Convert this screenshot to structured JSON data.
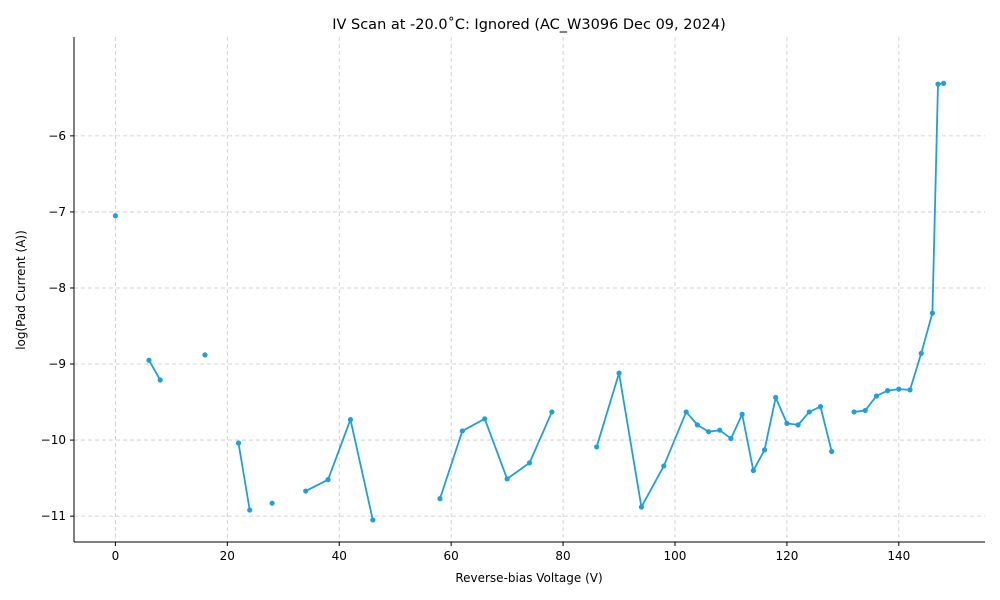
{
  "chart_data": {
    "type": "line",
    "title": "IV Scan at -20.0˚C: Ignored (AC_W3096 Dec 09, 2024)",
    "xlabel": "Reverse-bias Voltage (V)",
    "ylabel": "log(Pad Current (A))",
    "xlim": [
      -7.4,
      155.4
    ],
    "ylim": [
      -11.34,
      -4.7
    ],
    "grid": true,
    "color": "#1f9fe0",
    "x_ticks": [
      0,
      20,
      40,
      60,
      80,
      100,
      120,
      140
    ],
    "x_tick_labels": [
      "0",
      "20",
      "40",
      "60",
      "80",
      "100",
      "120",
      "140"
    ],
    "y_ticks": [
      -11,
      -10,
      -9,
      -8,
      -7,
      -6
    ],
    "y_tick_labels": [
      "−11",
      "−10",
      "−9",
      "−8",
      "−7",
      "−6"
    ],
    "series": [
      {
        "segments": [
          [
            [
              0,
              -7.05
            ]
          ],
          [
            [
              6,
              -8.95
            ],
            [
              8,
              -9.21
            ]
          ],
          [
            [
              16,
              -8.88
            ]
          ],
          [
            [
              22,
              -10.04
            ],
            [
              24,
              -10.92
            ]
          ],
          [
            [
              28,
              -10.83
            ]
          ],
          [
            [
              34,
              -10.67
            ],
            [
              38,
              -10.52
            ],
            [
              42,
              -9.73
            ],
            [
              46,
              -11.05
            ]
          ],
          [
            [
              58,
              -10.77
            ],
            [
              62,
              -9.88
            ],
            [
              66,
              -9.72
            ],
            [
              70,
              -10.51
            ],
            [
              74,
              -10.3
            ],
            [
              78,
              -9.63
            ]
          ],
          [
            [
              86,
              -10.09
            ],
            [
              90,
              -9.12
            ],
            [
              94,
              -10.88
            ],
            [
              98,
              -10.34
            ],
            [
              102,
              -9.63
            ],
            [
              104,
              -9.8
            ],
            [
              106,
              -9.89
            ],
            [
              108,
              -9.87
            ],
            [
              110,
              -9.98
            ],
            [
              112,
              -9.66
            ],
            [
              114,
              -10.4
            ],
            [
              116,
              -10.13
            ],
            [
              118,
              -9.44
            ],
            [
              120,
              -9.78
            ],
            [
              122,
              -9.8
            ],
            [
              124,
              -9.63
            ],
            [
              126,
              -9.56
            ],
            [
              128,
              -10.15
            ]
          ],
          [
            [
              132,
              -9.63
            ],
            [
              134,
              -9.61
            ],
            [
              136,
              -9.42
            ],
            [
              138,
              -9.35
            ],
            [
              140,
              -9.33
            ],
            [
              142,
              -9.34
            ],
            [
              144,
              -8.86
            ],
            [
              146,
              -8.33
            ],
            [
              147,
              -5.32
            ],
            [
              148,
              -5.31
            ]
          ]
        ]
      }
    ]
  }
}
